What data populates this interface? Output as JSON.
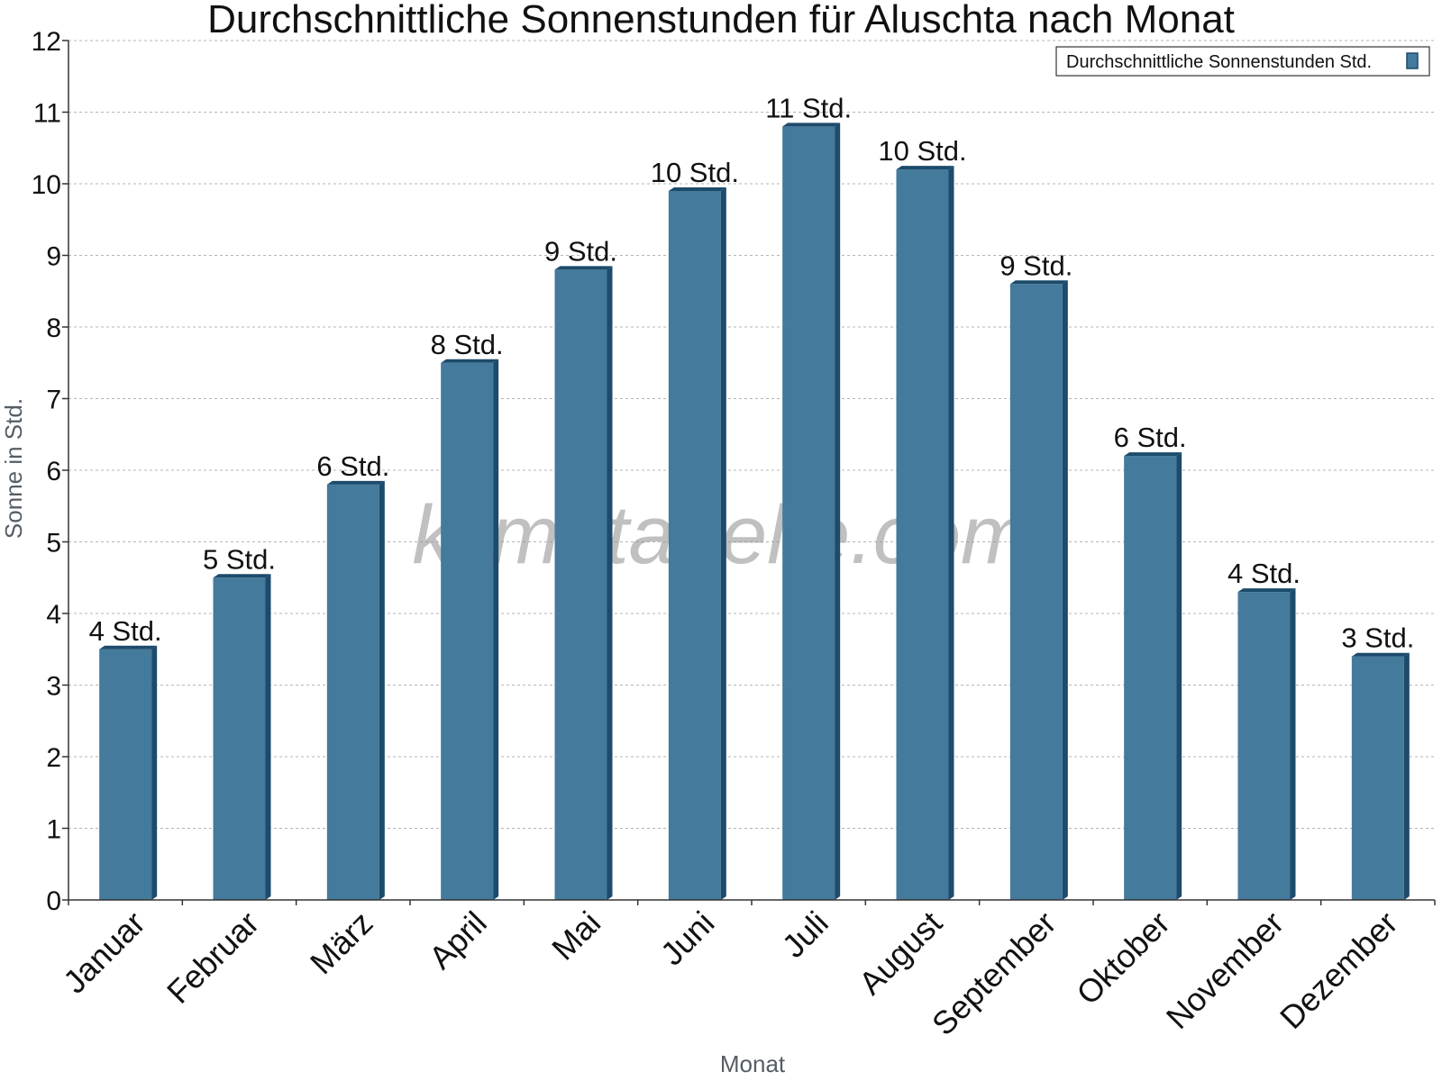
{
  "chart_data": {
    "type": "bar",
    "title": "Durchschnittliche Sonnenstunden für Aluschta nach Monat",
    "xlabel": "Monat",
    "ylabel": "Sonne in Std.",
    "ylim": [
      0,
      12
    ],
    "yticks": [
      "0",
      "1",
      "2",
      "3",
      "4",
      "5",
      "6",
      "7",
      "8",
      "9",
      "10",
      "11",
      "12"
    ],
    "grid": true,
    "legend_position": "top-right",
    "categories": [
      "Januar",
      "Februar",
      "März",
      "April",
      "Mai",
      "Juni",
      "Juli",
      "August",
      "September",
      "Oktober",
      "November",
      "Dezember"
    ],
    "series": [
      {
        "name": "Durchschnittliche Sonnenstunden Std.",
        "values": [
          3.5,
          4.5,
          5.8,
          7.5,
          8.8,
          9.9,
          10.8,
          10.2,
          8.6,
          6.2,
          4.3,
          3.4
        ],
        "labels": [
          "4 Std.",
          "5 Std.",
          "6 Std.",
          "8 Std.",
          "9 Std.",
          "10 Std.",
          "11 Std.",
          "10 Std.",
          "9 Std.",
          "6 Std.",
          "4 Std.",
          "3 Std."
        ],
        "color": "#447a9c",
        "edge_color": "#1d4b6b"
      }
    ],
    "watermark": "klimatabelle.com"
  }
}
